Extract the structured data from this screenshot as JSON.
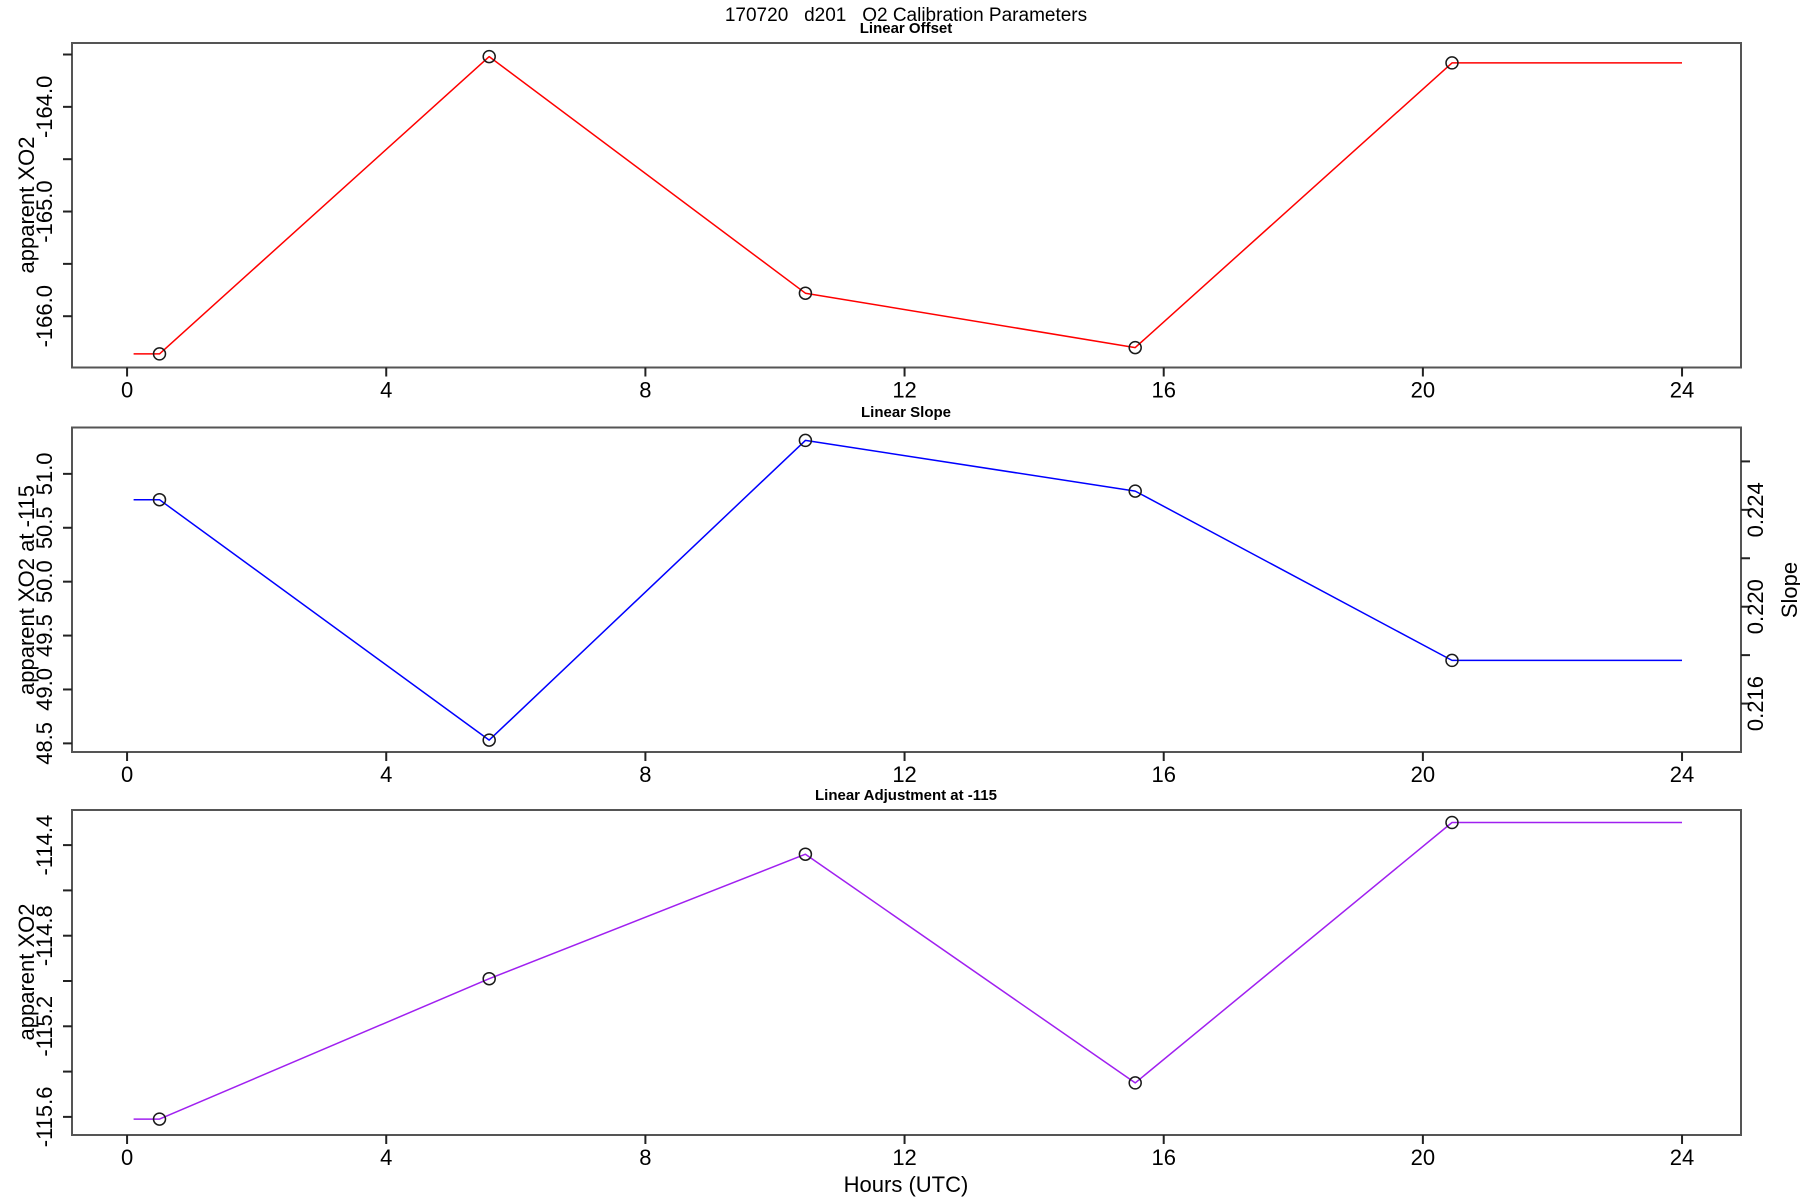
{
  "title": "170720   d201   O2 Calibration Parameters",
  "x_axis": {
    "label": "Hours (UTC)",
    "ticks": [
      0,
      4,
      8,
      12,
      16,
      20,
      24
    ],
    "tick_labels": [
      "0",
      "4",
      "8",
      "12",
      "16",
      "20",
      "24"
    ],
    "range": [
      -0.85,
      24.91
    ]
  },
  "colors": {
    "offset_line": "#FF0000",
    "slope_line": "#0000FF",
    "adjustment_line": "#A020F0",
    "marker": "#1a1a1a",
    "box": "#555555",
    "tick": "#222222",
    "background": "#ffffff"
  },
  "chart_data": [
    {
      "type": "line",
      "title": "Linear Offset",
      "ylabel": "apparent XO2",
      "line_color": "#FF0000",
      "x": [
        0.5,
        5.59,
        10.47,
        15.56,
        20.45
      ],
      "y": [
        -166.36,
        -163.52,
        -165.78,
        -166.3,
        -163.58
      ],
      "pre_line_start_x": 0.1,
      "post_line_end_x": 24,
      "ylim": [
        -166.49,
        -163.39
      ],
      "yticks": [
        -166.0,
        -165.5,
        -165.0,
        -164.5,
        -164.0,
        -163.5
      ],
      "ytick_labels": [
        "-166.0",
        "",
        "-165.0",
        "",
        "-164.0",
        ""
      ],
      "grid": false,
      "legend": "none"
    },
    {
      "type": "line",
      "title": "Linear Slope",
      "ylabel": "apparent XO2 at -115",
      "ylabel_right": "Slope",
      "line_color": "#0000FF",
      "x": [
        0.5,
        5.59,
        10.47,
        15.56,
        20.45
      ],
      "y": [
        50.76,
        48.53,
        51.31,
        50.84,
        49.27
      ],
      "y_right_equivalent": [
        0.2244,
        0.2145,
        0.2269,
        0.2248,
        0.2178
      ],
      "pre_line_start_x": 0.1,
      "post_line_end_x": 24,
      "ylim": [
        48.42,
        51.43
      ],
      "yticks": [
        48.5,
        49.0,
        49.5,
        50.0,
        50.5,
        51.0
      ],
      "ytick_labels": [
        "48.5",
        "49.0",
        "49.5",
        "50.0",
        "50.5",
        "51.0"
      ],
      "ylim_right": [
        0.214,
        0.2274
      ],
      "yticks_right": [
        0.216,
        0.218,
        0.22,
        0.222,
        0.224,
        0.226
      ],
      "ytick_labels_right": [
        "0.216",
        "",
        "0.220",
        "",
        "0.224",
        ""
      ],
      "grid": false,
      "legend": "none"
    },
    {
      "type": "line",
      "title": "Linear Adjustment at -115",
      "ylabel": "apparent XO2",
      "line_color": "#A020F0",
      "x": [
        0.5,
        5.59,
        10.47,
        15.56,
        20.45
      ],
      "y": [
        -115.61,
        -114.99,
        -114.44,
        -115.45,
        -114.3
      ],
      "pre_line_start_x": 0.1,
      "post_line_end_x": 24,
      "ylim": [
        -115.68,
        -114.245
      ],
      "yticks": [
        -115.6,
        -115.4,
        -115.2,
        -115.0,
        -114.8,
        -114.6,
        -114.4
      ],
      "ytick_labels": [
        "-115.6",
        "",
        "-115.2",
        "",
        "-114.8",
        "",
        "-114.4"
      ],
      "grid": false,
      "legend": "none"
    }
  ]
}
